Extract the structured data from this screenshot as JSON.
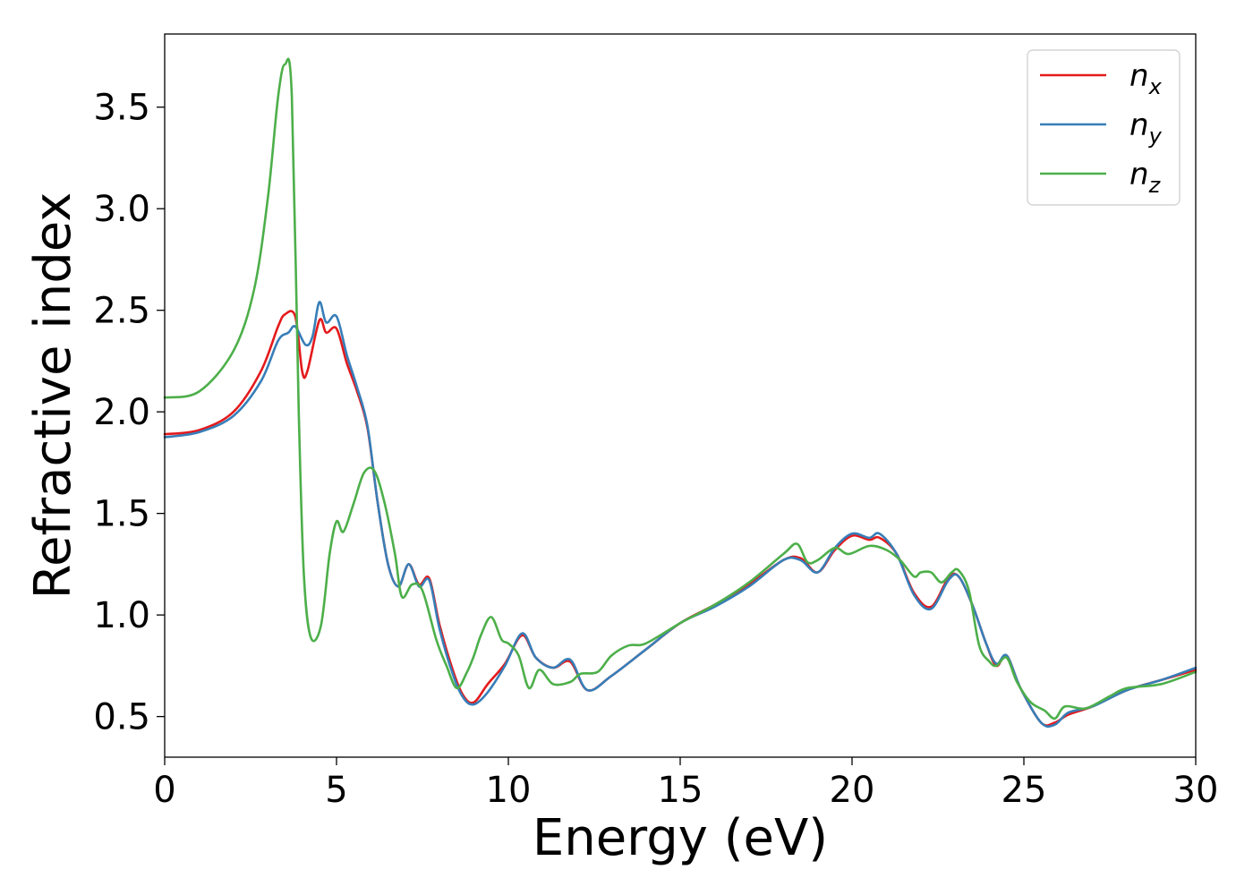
{
  "chart_data": {
    "type": "line",
    "title": "",
    "xlabel": "Energy (eV)",
    "ylabel": "Refractive index",
    "xlim": [
      0,
      30
    ],
    "ylim": [
      0.3,
      3.86
    ],
    "xticks": [
      0,
      5,
      10,
      15,
      20,
      25,
      30
    ],
    "yticks": [
      0.5,
      1.0,
      1.5,
      2.0,
      2.5,
      3.0,
      3.5
    ],
    "xtick_labels": [
      "0",
      "5",
      "10",
      "15",
      "20",
      "25",
      "30"
    ],
    "ytick_labels": [
      "0.5",
      "1.0",
      "1.5",
      "2.0",
      "2.5",
      "3.0",
      "3.5"
    ],
    "grid": false,
    "legend_position": "top-right",
    "series": [
      {
        "name": "n",
        "subscript": "x",
        "color": "#e41a1c",
        "points": [
          [
            0,
            1.89
          ],
          [
            1,
            1.91
          ],
          [
            2,
            2.0
          ],
          [
            2.8,
            2.2
          ],
          [
            3.3,
            2.42
          ],
          [
            3.5,
            2.48
          ],
          [
            3.8,
            2.47
          ],
          [
            4.0,
            2.2
          ],
          [
            4.15,
            2.2
          ],
          [
            4.5,
            2.45
          ],
          [
            4.7,
            2.39
          ],
          [
            5.0,
            2.41
          ],
          [
            5.3,
            2.24
          ],
          [
            5.6,
            2.1
          ],
          [
            5.9,
            1.92
          ],
          [
            6.2,
            1.55
          ],
          [
            6.5,
            1.25
          ],
          [
            6.8,
            1.14
          ],
          [
            7.1,
            1.25
          ],
          [
            7.4,
            1.15
          ],
          [
            7.7,
            1.18
          ],
          [
            8.0,
            0.95
          ],
          [
            8.4,
            0.72
          ],
          [
            8.7,
            0.6
          ],
          [
            9.0,
            0.57
          ],
          [
            9.4,
            0.66
          ],
          [
            9.9,
            0.76
          ],
          [
            10.4,
            0.9
          ],
          [
            10.8,
            0.79
          ],
          [
            11.3,
            0.74
          ],
          [
            11.8,
            0.77
          ],
          [
            12.3,
            0.63
          ],
          [
            13.0,
            0.7
          ],
          [
            14.0,
            0.83
          ],
          [
            15.0,
            0.96
          ],
          [
            16.0,
            1.05
          ],
          [
            17.0,
            1.15
          ],
          [
            18.0,
            1.27
          ],
          [
            18.5,
            1.28
          ],
          [
            19.0,
            1.21
          ],
          [
            19.5,
            1.32
          ],
          [
            20.0,
            1.39
          ],
          [
            20.5,
            1.37
          ],
          [
            20.8,
            1.38
          ],
          [
            21.3,
            1.3
          ],
          [
            21.8,
            1.11
          ],
          [
            22.3,
            1.04
          ],
          [
            22.8,
            1.18
          ],
          [
            23.1,
            1.19
          ],
          [
            23.5,
            1.05
          ],
          [
            23.9,
            0.86
          ],
          [
            24.2,
            0.75
          ],
          [
            24.5,
            0.8
          ],
          [
            24.9,
            0.64
          ],
          [
            25.5,
            0.47
          ],
          [
            25.9,
            0.47
          ],
          [
            26.3,
            0.51
          ],
          [
            27.0,
            0.55
          ],
          [
            28.0,
            0.63
          ],
          [
            29.0,
            0.68
          ],
          [
            30.0,
            0.73
          ]
        ]
      },
      {
        "name": "n",
        "subscript": "y",
        "color": "#377eb8",
        "points": [
          [
            0,
            1.875
          ],
          [
            1,
            1.9
          ],
          [
            2,
            1.98
          ],
          [
            2.8,
            2.15
          ],
          [
            3.3,
            2.35
          ],
          [
            3.6,
            2.39
          ],
          [
            3.8,
            2.42
          ],
          [
            4.1,
            2.33
          ],
          [
            4.3,
            2.37
          ],
          [
            4.5,
            2.54
          ],
          [
            4.7,
            2.44
          ],
          [
            5.0,
            2.47
          ],
          [
            5.3,
            2.28
          ],
          [
            5.6,
            2.12
          ],
          [
            5.9,
            1.93
          ],
          [
            6.2,
            1.55
          ],
          [
            6.5,
            1.25
          ],
          [
            6.8,
            1.14
          ],
          [
            7.1,
            1.25
          ],
          [
            7.4,
            1.14
          ],
          [
            7.7,
            1.17
          ],
          [
            8.0,
            0.93
          ],
          [
            8.4,
            0.7
          ],
          [
            8.7,
            0.59
          ],
          [
            9.0,
            0.56
          ],
          [
            9.4,
            0.62
          ],
          [
            9.9,
            0.75
          ],
          [
            10.4,
            0.91
          ],
          [
            10.8,
            0.79
          ],
          [
            11.3,
            0.74
          ],
          [
            11.8,
            0.78
          ],
          [
            12.3,
            0.63
          ],
          [
            13.0,
            0.7
          ],
          [
            14.0,
            0.83
          ],
          [
            15.0,
            0.96
          ],
          [
            16.0,
            1.04
          ],
          [
            17.0,
            1.14
          ],
          [
            18.0,
            1.27
          ],
          [
            18.5,
            1.27
          ],
          [
            19.0,
            1.21
          ],
          [
            19.5,
            1.33
          ],
          [
            20.0,
            1.4
          ],
          [
            20.5,
            1.38
          ],
          [
            20.8,
            1.4
          ],
          [
            21.3,
            1.3
          ],
          [
            21.8,
            1.1
          ],
          [
            22.3,
            1.03
          ],
          [
            22.8,
            1.17
          ],
          [
            23.1,
            1.19
          ],
          [
            23.5,
            1.05
          ],
          [
            23.9,
            0.86
          ],
          [
            24.2,
            0.76
          ],
          [
            24.5,
            0.8
          ],
          [
            24.9,
            0.64
          ],
          [
            25.5,
            0.47
          ],
          [
            25.9,
            0.46
          ],
          [
            26.3,
            0.52
          ],
          [
            27.0,
            0.55
          ],
          [
            28.0,
            0.63
          ],
          [
            29.0,
            0.68
          ],
          [
            30.0,
            0.74
          ]
        ]
      },
      {
        "name": "n",
        "subscript": "z",
        "color": "#4daf4a",
        "points": [
          [
            0,
            2.07
          ],
          [
            1,
            2.1
          ],
          [
            2,
            2.3
          ],
          [
            2.6,
            2.6
          ],
          [
            3.0,
            3.05
          ],
          [
            3.3,
            3.55
          ],
          [
            3.5,
            3.71
          ],
          [
            3.7,
            3.55
          ],
          [
            3.9,
            2.0
          ],
          [
            4.05,
            1.2
          ],
          [
            4.25,
            0.89
          ],
          [
            4.55,
            0.95
          ],
          [
            4.8,
            1.3
          ],
          [
            5.0,
            1.46
          ],
          [
            5.2,
            1.41
          ],
          [
            5.5,
            1.55
          ],
          [
            5.8,
            1.7
          ],
          [
            6.1,
            1.71
          ],
          [
            6.4,
            1.55
          ],
          [
            6.7,
            1.3
          ],
          [
            6.9,
            1.09
          ],
          [
            7.2,
            1.15
          ],
          [
            7.5,
            1.12
          ],
          [
            7.9,
            0.88
          ],
          [
            8.2,
            0.75
          ],
          [
            8.5,
            0.64
          ],
          [
            8.8,
            0.72
          ],
          [
            9.0,
            0.8
          ],
          [
            9.2,
            0.9
          ],
          [
            9.5,
            0.99
          ],
          [
            9.8,
            0.88
          ],
          [
            10.0,
            0.86
          ],
          [
            10.3,
            0.8
          ],
          [
            10.6,
            0.64
          ],
          [
            10.9,
            0.73
          ],
          [
            11.3,
            0.66
          ],
          [
            11.8,
            0.67
          ],
          [
            12.1,
            0.71
          ],
          [
            12.6,
            0.72
          ],
          [
            13.0,
            0.8
          ],
          [
            13.5,
            0.85
          ],
          [
            14.0,
            0.86
          ],
          [
            15.0,
            0.96
          ],
          [
            16.0,
            1.05
          ],
          [
            17.0,
            1.16
          ],
          [
            18.0,
            1.3
          ],
          [
            18.4,
            1.35
          ],
          [
            18.7,
            1.26
          ],
          [
            19.0,
            1.27
          ],
          [
            19.5,
            1.33
          ],
          [
            19.9,
            1.3
          ],
          [
            20.5,
            1.34
          ],
          [
            21.0,
            1.32
          ],
          [
            21.4,
            1.27
          ],
          [
            21.8,
            1.19
          ],
          [
            22.0,
            1.21
          ],
          [
            22.3,
            1.21
          ],
          [
            22.6,
            1.16
          ],
          [
            22.9,
            1.21
          ],
          [
            23.1,
            1.22
          ],
          [
            23.4,
            1.12
          ],
          [
            23.7,
            0.85
          ],
          [
            24.0,
            0.77
          ],
          [
            24.2,
            0.75
          ],
          [
            24.5,
            0.79
          ],
          [
            24.8,
            0.67
          ],
          [
            25.2,
            0.57
          ],
          [
            25.6,
            0.53
          ],
          [
            25.9,
            0.49
          ],
          [
            26.2,
            0.55
          ],
          [
            26.8,
            0.54
          ],
          [
            27.5,
            0.6
          ],
          [
            28.0,
            0.64
          ],
          [
            29.0,
            0.66
          ],
          [
            30.0,
            0.72
          ]
        ]
      }
    ]
  }
}
